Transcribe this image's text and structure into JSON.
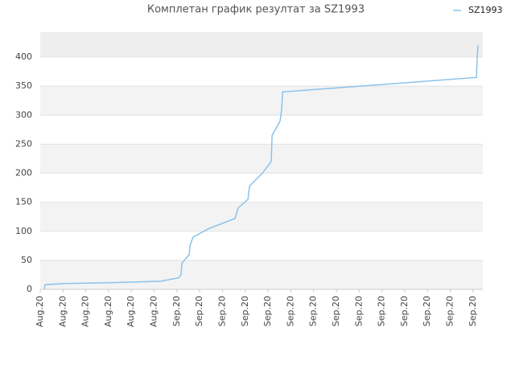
{
  "chart_data": {
    "type": "line",
    "title": "Комплетан график резултат за SZ1993",
    "series": [
      {
        "name": "SZ1993",
        "color": "#8cc2ea",
        "x": [
          0.18,
          0.21,
          1.06,
          2.65,
          4.42,
          5.3,
          6.08,
          6.18,
          6.22,
          6.54,
          6.57,
          6.71,
          7.42,
          8.55,
          8.69,
          9.12,
          9.19,
          9.75,
          10.14,
          10.18,
          10.53,
          10.6,
          10.64,
          19.15,
          19.19,
          19.22
        ],
        "values": [
          0,
          8,
          10,
          11,
          13,
          14,
          20,
          25,
          45,
          60,
          75,
          90,
          105,
          122,
          140,
          155,
          178,
          200,
          220,
          265,
          290,
          310,
          340,
          365,
          405,
          420
        ]
      }
    ],
    "xlim": [
      0,
      19.43
    ],
    "xticks": [
      {
        "value": 0,
        "label": "Aug.20"
      },
      {
        "value": 1,
        "label": "Aug.20"
      },
      {
        "value": 2,
        "label": "Aug.20"
      },
      {
        "value": 3,
        "label": "Aug.20"
      },
      {
        "value": 4,
        "label": "Aug.20"
      },
      {
        "value": 5,
        "label": "Aug.20"
      },
      {
        "value": 6,
        "label": "Sep.20"
      },
      {
        "value": 7,
        "label": "Sep.20"
      },
      {
        "value": 8,
        "label": "Sep.20"
      },
      {
        "value": 9,
        "label": "Sep.20"
      },
      {
        "value": 10,
        "label": "Sep.20"
      },
      {
        "value": 11,
        "label": "Sep.20"
      },
      {
        "value": 12,
        "label": "Sep.20"
      },
      {
        "value": 13,
        "label": "Sep.20"
      },
      {
        "value": 14,
        "label": "Sep.20"
      },
      {
        "value": 15,
        "label": "Sep.20"
      },
      {
        "value": 16,
        "label": "Sep.20"
      },
      {
        "value": 17,
        "label": "Sep.20"
      },
      {
        "value": 18,
        "label": "Sep.20"
      },
      {
        "value": 19,
        "label": "Sep.20"
      }
    ],
    "ylim": [
      0,
      443
    ],
    "yticks": [
      0,
      50,
      100,
      150,
      200,
      250,
      300,
      350,
      400
    ],
    "grid": true,
    "legend": "top-right"
  }
}
